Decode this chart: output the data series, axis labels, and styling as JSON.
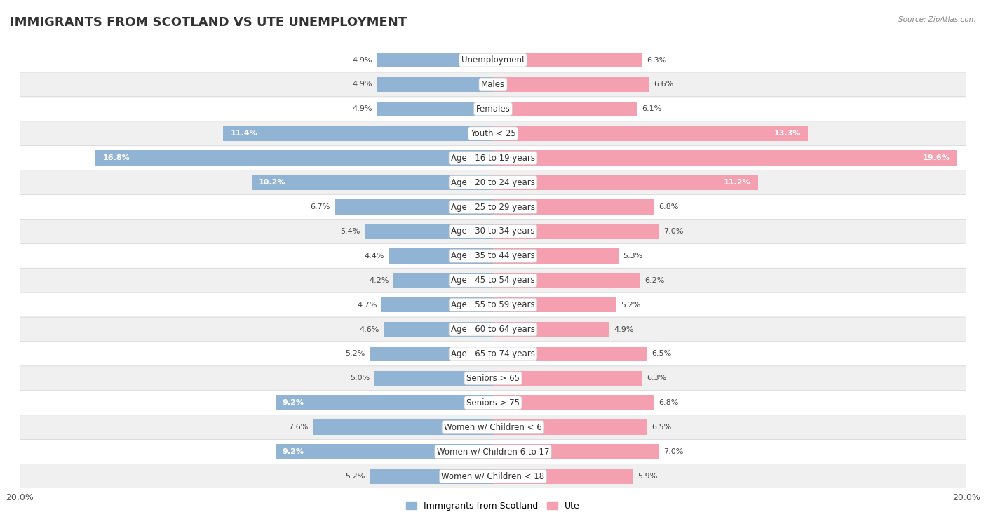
{
  "title": "IMMIGRANTS FROM SCOTLAND VS UTE UNEMPLOYMENT",
  "source": "Source: ZipAtlas.com",
  "categories": [
    "Unemployment",
    "Males",
    "Females",
    "Youth < 25",
    "Age | 16 to 19 years",
    "Age | 20 to 24 years",
    "Age | 25 to 29 years",
    "Age | 30 to 34 years",
    "Age | 35 to 44 years",
    "Age | 45 to 54 years",
    "Age | 55 to 59 years",
    "Age | 60 to 64 years",
    "Age | 65 to 74 years",
    "Seniors > 65",
    "Seniors > 75",
    "Women w/ Children < 6",
    "Women w/ Children 6 to 17",
    "Women w/ Children < 18"
  ],
  "scotland_values": [
    4.9,
    4.9,
    4.9,
    11.4,
    16.8,
    10.2,
    6.7,
    5.4,
    4.4,
    4.2,
    4.7,
    4.6,
    5.2,
    5.0,
    9.2,
    7.6,
    9.2,
    5.2
  ],
  "ute_values": [
    6.3,
    6.6,
    6.1,
    13.3,
    19.6,
    11.2,
    6.8,
    7.0,
    5.3,
    6.2,
    5.2,
    4.9,
    6.5,
    6.3,
    6.8,
    6.5,
    7.0,
    5.9
  ],
  "scotland_color": "#92b4d4",
  "ute_color": "#f4a0b0",
  "scotland_label": "Immigrants from Scotland",
  "ute_label": "Ute",
  "axis_limit": 20.0,
  "background_color": "#ffffff",
  "row_bg_even": "#ffffff",
  "row_bg_odd": "#f0f0f0",
  "row_border_color": "#d8d8d8",
  "title_fontsize": 13,
  "cat_fontsize": 8.5,
  "value_fontsize": 8.0,
  "legend_fontsize": 9
}
